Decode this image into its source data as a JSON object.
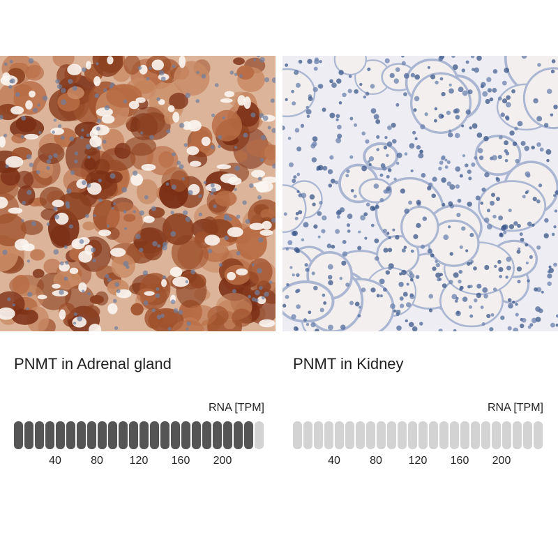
{
  "panels": [
    {
      "title": "PNMT in Adrenal gland",
      "rna_label": "RNA [TPM]",
      "scale": {
        "xlim": [
          0,
          240
        ],
        "segments": 24,
        "value": 230,
        "ticks": [
          40,
          80,
          120,
          160,
          200
        ]
      }
    },
    {
      "title": "PNMT in Kidney",
      "rna_label": "RNA [TPM]",
      "scale": {
        "xlim": [
          0,
          240
        ],
        "segments": 24,
        "value": 0,
        "ticks": [
          40,
          80,
          120,
          160,
          200
        ]
      }
    }
  ]
}
